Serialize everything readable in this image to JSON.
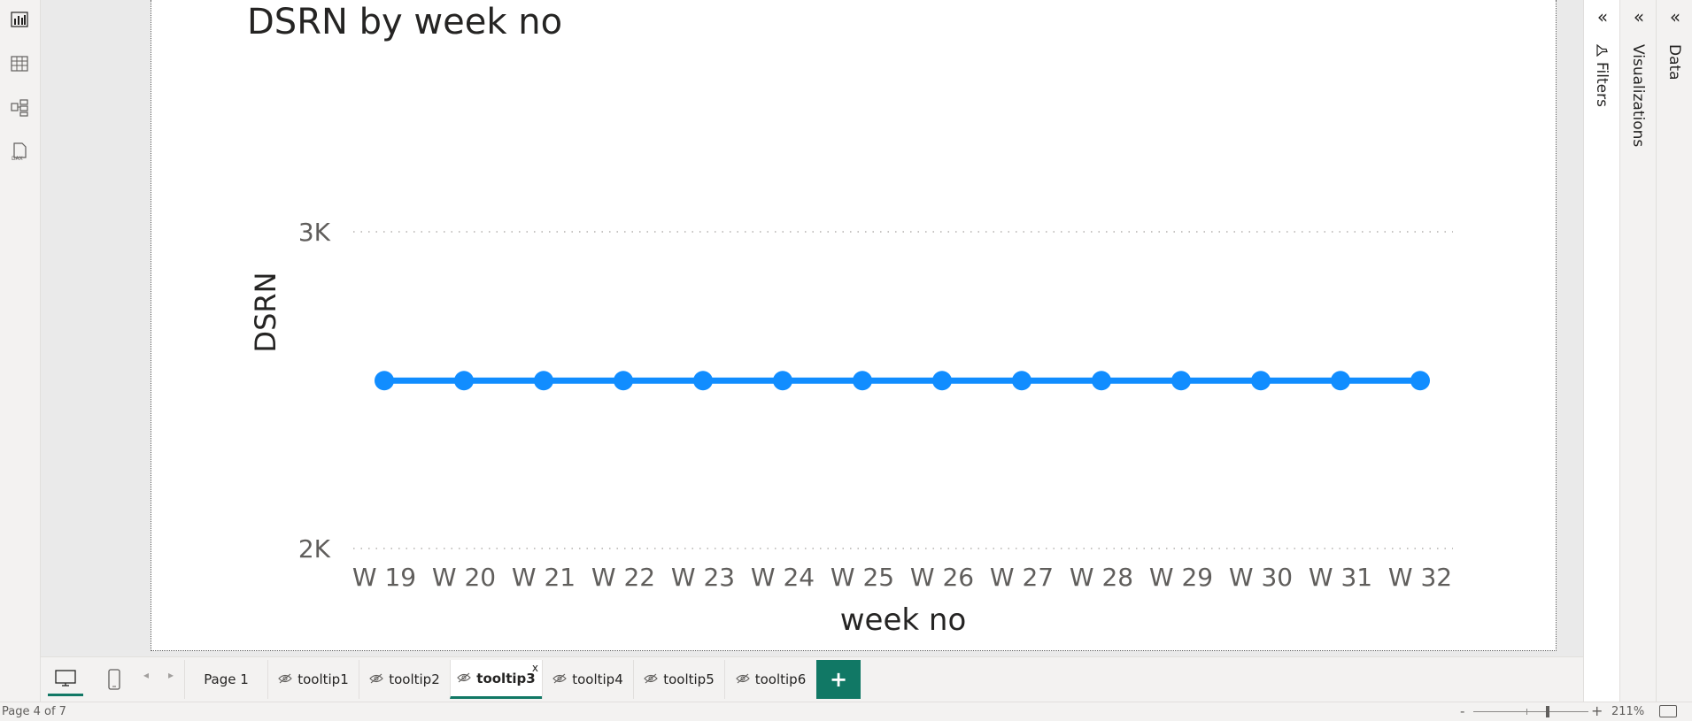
{
  "visual": {
    "title": "DSRN by week no"
  },
  "chart_data": {
    "type": "line",
    "title": "DSRN by week no",
    "xlabel": "week no",
    "ylabel": "DSRN",
    "categories": [
      "W 19",
      "W 20",
      "W 21",
      "W 22",
      "W 23",
      "W 24",
      "W 25",
      "W 26",
      "W 27",
      "W 28",
      "W 29",
      "W 30",
      "W 31",
      "W 32"
    ],
    "series": [
      {
        "values": [
          2530,
          2530,
          2530,
          2530,
          2530,
          2530,
          2530,
          2530,
          2530,
          2530,
          2530,
          2530,
          2530,
          2530
        ],
        "color": "#118DFF"
      }
    ],
    "y_ticks": [
      {
        "value": 3000,
        "label": "3K"
      },
      {
        "value": 2000,
        "label": "2K"
      }
    ],
    "ylim": [
      2000,
      3000
    ],
    "grid": "dotted-horizontal"
  },
  "panes": {
    "filters": "Filters",
    "visualizations": "Visualizations",
    "data": "Data"
  },
  "tabs": [
    {
      "label": "Page 1",
      "hidden": false,
      "active": false
    },
    {
      "label": "tooltip1",
      "hidden": true,
      "active": false
    },
    {
      "label": "tooltip2",
      "hidden": true,
      "active": false
    },
    {
      "label": "tooltip3",
      "hidden": true,
      "active": true
    },
    {
      "label": "tooltip4",
      "hidden": true,
      "active": false
    },
    {
      "label": "tooltip5",
      "hidden": true,
      "active": false
    },
    {
      "label": "tooltip6",
      "hidden": true,
      "active": false
    }
  ],
  "tab_close": "x",
  "add_page": "+",
  "status": {
    "page_indicator": "Page 4 of 7",
    "zoom_out": "-",
    "zoom_in": "+",
    "zoom_level": "211%",
    "zoom_fraction": 0.65
  },
  "colors": {
    "accent": "#117865",
    "series": "#118DFF"
  }
}
